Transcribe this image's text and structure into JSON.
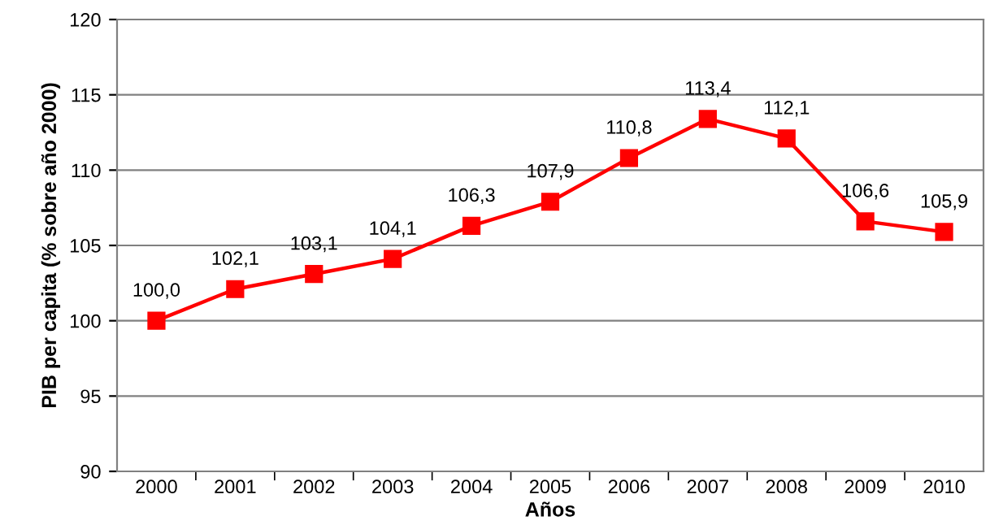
{
  "chart_data": {
    "type": "line",
    "xlabel": "Años",
    "ylabel": "PIB per capita (% sobre año 2000)",
    "categories": [
      "2000",
      "2001",
      "2002",
      "2003",
      "2004",
      "2005",
      "2006",
      "2007",
      "2008",
      "2009",
      "2010"
    ],
    "series": [
      {
        "color": "#ff0000",
        "values": [
          100.0,
          102.1,
          103.1,
          104.1,
          106.3,
          107.9,
          110.8,
          113.4,
          112.1,
          106.6,
          105.9
        ],
        "value_labels": [
          "100,0",
          "102,1",
          "103,1",
          "104,1",
          "106,3",
          "107,9",
          "110,8",
          "113,4",
          "112,1",
          "106,6",
          "105,9"
        ]
      }
    ],
    "ylim": [
      90,
      120
    ],
    "yticks": [
      90,
      95,
      100,
      105,
      110,
      115,
      120
    ],
    "grid": "y",
    "marker": "square",
    "line_style": "solid"
  }
}
